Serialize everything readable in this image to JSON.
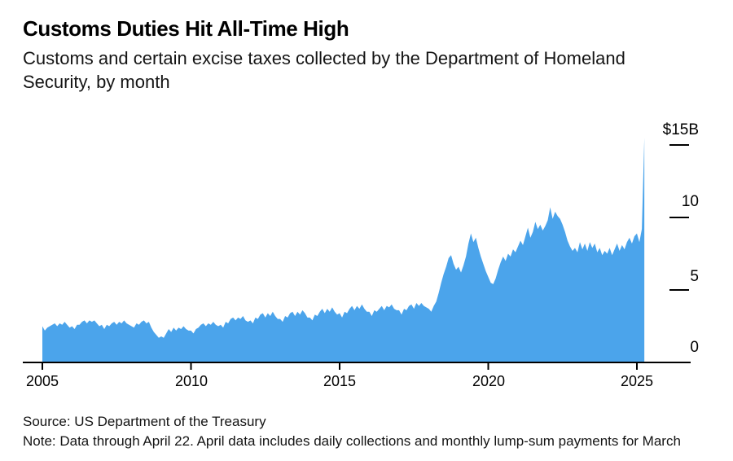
{
  "header": {
    "title": "Customs Duties Hit All-Time High",
    "subtitle_line1": "Customs and certain excise taxes collected by the Department of Homeland",
    "subtitle_line2": "Security, by month"
  },
  "footer": {
    "source": "Source: US Department of the Treasury",
    "note": "Note: Data through April 22. April data includes daily collections and monthly lump-sum payments for March"
  },
  "chart_data": {
    "type": "area",
    "title": "Customs Duties Hit All-Time High",
    "series_name": "Customs and certain excise taxes collected by DHS, monthly",
    "unit": "USD billions per month",
    "x_start": "2005-01",
    "x_end": "2025-04",
    "xlabel": "",
    "ylabel": "",
    "ylim": [
      0,
      15.5
    ],
    "grid": false,
    "legend": "none",
    "y_axis_side": "right",
    "y_ticks": [
      {
        "label": "$15B",
        "value": 15
      },
      {
        "label": "10",
        "value": 10
      },
      {
        "label": "5",
        "value": 5
      },
      {
        "label": "0",
        "value": 0
      }
    ],
    "x_ticks": [
      "2005",
      "2010",
      "2015",
      "2020",
      "2025"
    ],
    "area_color": "#4BA4EB",
    "axis_color": "#000000",
    "peak_value_billions": 15.5,
    "peak_month": "2025-04",
    "values_monthly_billions": [
      2.5,
      2.2,
      2.4,
      2.5,
      2.6,
      2.7,
      2.5,
      2.7,
      2.6,
      2.8,
      2.6,
      2.4,
      2.5,
      2.3,
      2.6,
      2.6,
      2.8,
      2.9,
      2.7,
      2.9,
      2.8,
      2.9,
      2.7,
      2.5,
      2.6,
      2.3,
      2.6,
      2.5,
      2.7,
      2.8,
      2.6,
      2.8,
      2.7,
      2.9,
      2.7,
      2.6,
      2.5,
      2.4,
      2.7,
      2.6,
      2.8,
      2.9,
      2.7,
      2.8,
      2.4,
      2.1,
      1.9,
      1.7,
      1.8,
      1.7,
      2.0,
      2.3,
      2.1,
      2.4,
      2.2,
      2.4,
      2.3,
      2.5,
      2.3,
      2.2,
      2.2,
      2.0,
      2.3,
      2.4,
      2.6,
      2.7,
      2.5,
      2.7,
      2.6,
      2.8,
      2.6,
      2.5,
      2.6,
      2.4,
      2.8,
      2.7,
      3.0,
      3.1,
      2.9,
      3.1,
      3.0,
      3.2,
      2.9,
      2.8,
      2.9,
      2.7,
      3.1,
      3.0,
      3.3,
      3.4,
      3.1,
      3.4,
      3.2,
      3.5,
      3.2,
      3.0,
      3.0,
      2.8,
      3.2,
      3.1,
      3.4,
      3.5,
      3.2,
      3.5,
      3.3,
      3.6,
      3.4,
      3.1,
      3.1,
      2.9,
      3.3,
      3.2,
      3.5,
      3.7,
      3.4,
      3.7,
      3.5,
      3.8,
      3.5,
      3.3,
      3.4,
      3.1,
      3.5,
      3.4,
      3.7,
      3.9,
      3.6,
      3.9,
      3.7,
      4.0,
      3.7,
      3.5,
      3.5,
      3.2,
      3.6,
      3.5,
      3.7,
      3.9,
      3.6,
      3.9,
      3.8,
      4.0,
      3.7,
      3.6,
      3.6,
      3.3,
      3.7,
      3.6,
      3.9,
      4.0,
      3.7,
      4.1,
      3.9,
      4.1,
      3.9,
      3.8,
      3.7,
      3.5,
      3.9,
      4.2,
      4.8,
      5.5,
      6.1,
      6.6,
      7.2,
      7.4,
      6.8,
      6.4,
      6.6,
      6.2,
      6.7,
      7.3,
      8.2,
      8.9,
      8.3,
      8.6,
      7.9,
      7.3,
      6.8,
      6.3,
      5.9,
      5.5,
      5.4,
      5.8,
      6.4,
      6.9,
      7.3,
      7.0,
      7.5,
      7.3,
      7.8,
      7.6,
      8.0,
      8.4,
      8.1,
      8.7,
      9.3,
      8.6,
      9.0,
      9.7,
      9.2,
      9.5,
      9.1,
      9.4,
      9.8,
      10.7,
      9.9,
      10.4,
      10.1,
      9.9,
      9.5,
      9.0,
      8.4,
      8.0,
      7.7,
      7.9,
      7.6,
      8.3,
      7.8,
      8.2,
      7.7,
      8.3,
      7.9,
      8.2,
      7.6,
      7.9,
      7.4,
      7.7,
      7.5,
      7.9,
      7.4,
      7.8,
      8.2,
      7.7,
      8.1,
      7.8,
      8.3,
      8.6,
      8.2,
      8.7,
      8.9,
      8.3,
      9.2,
      15.5
    ]
  }
}
